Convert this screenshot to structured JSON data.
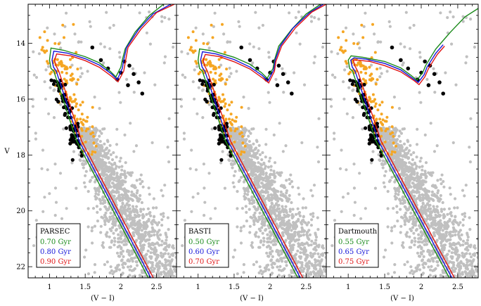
{
  "figure": {
    "type": "color-magnitude diagram",
    "ylabel": "V",
    "xlabel": "(V − I)"
  },
  "colors": {
    "field_stars": "#c0c0c0",
    "orange_stars": "#f5a623",
    "black_stars": "#000000",
    "green": "#1a8a1a",
    "blue": "#1515d8",
    "red": "#e01414"
  },
  "chart_data": [
    {
      "type": "scatter",
      "panel": "PARSEC",
      "x_range": [
        0.7,
        2.78
      ],
      "y_range": [
        22.4,
        12.6
      ],
      "y_inverted": true,
      "x_ticks": [
        1,
        1.5,
        2,
        2.5
      ],
      "y_ticks": [
        14,
        16,
        18,
        20,
        22
      ],
      "legend": {
        "title": "PARSEC",
        "position": "bottom-left",
        "entries": [
          {
            "label": "0.70 Gyr",
            "color": "#1a8a1a"
          },
          {
            "label": "0.80 Gyr",
            "color": "#1515d8"
          },
          {
            "label": "0.90 Gyr",
            "color": "#e01414"
          }
        ]
      },
      "series": [
        {
          "name": "0.70 Gyr",
          "type": "line",
          "color": "#1a8a1a",
          "points": [
            [
              1.02,
              14.17
            ],
            [
              1.2,
              14.25
            ],
            [
              1.5,
              14.48
            ],
            [
              1.7,
              14.7
            ],
            [
              1.85,
              15.0
            ],
            [
              1.93,
              15.2
            ],
            [
              2.0,
              14.85
            ],
            [
              2.02,
              14.6
            ],
            [
              2.06,
              14.2
            ],
            [
              2.2,
              13.6
            ],
            [
              2.4,
              13.0
            ],
            [
              2.6,
              12.6
            ]
          ]
        },
        {
          "name": "0.80 Gyr",
          "type": "line",
          "color": "#1515d8",
          "points": [
            [
              1.06,
              14.28
            ],
            [
              1.25,
              14.35
            ],
            [
              1.5,
              14.55
            ],
            [
              1.7,
              14.78
            ],
            [
              1.87,
              15.1
            ],
            [
              1.95,
              15.3
            ],
            [
              2.02,
              14.9
            ],
            [
              2.04,
              14.6
            ],
            [
              2.08,
              14.15
            ],
            [
              2.25,
              13.5
            ],
            [
              2.45,
              12.95
            ],
            [
              2.7,
              12.6
            ]
          ]
        },
        {
          "name": "0.90 Gyr",
          "type": "line",
          "color": "#e01414",
          "points": [
            [
              1.1,
              14.38
            ],
            [
              1.3,
              14.45
            ],
            [
              1.5,
              14.62
            ],
            [
              1.7,
              14.86
            ],
            [
              1.88,
              15.2
            ],
            [
              1.96,
              15.38
            ],
            [
              2.04,
              15.0
            ],
            [
              2.06,
              14.7
            ],
            [
              2.1,
              14.15
            ],
            [
              2.28,
              13.5
            ],
            [
              2.5,
              12.9
            ],
            [
              2.75,
              12.6
            ]
          ]
        }
      ]
    },
    {
      "type": "scatter",
      "panel": "BASTI",
      "x_range": [
        0.7,
        2.78
      ],
      "y_range": [
        22.4,
        12.6
      ],
      "y_inverted": true,
      "x_ticks": [
        1,
        1.5,
        2,
        2.5
      ],
      "legend": {
        "title": "BASTI",
        "position": "bottom-left",
        "entries": [
          {
            "label": "0.50 Gyr",
            "color": "#1a8a1a"
          },
          {
            "label": "0.60 Gyr",
            "color": "#1515d8"
          },
          {
            "label": "0.70 Gyr",
            "color": "#e01414"
          }
        ]
      },
      "series": [
        {
          "name": "0.50 Gyr",
          "type": "line",
          "color": "#1a8a1a",
          "points": [
            [
              1.02,
              14.2
            ],
            [
              1.2,
              14.27
            ],
            [
              1.5,
              14.5
            ],
            [
              1.72,
              14.75
            ],
            [
              1.88,
              15.05
            ],
            [
              1.96,
              15.25
            ],
            [
              2.04,
              14.9
            ],
            [
              2.06,
              14.6
            ],
            [
              2.12,
              14.1
            ],
            [
              2.3,
              13.5
            ],
            [
              2.5,
              12.95
            ],
            [
              2.7,
              12.6
            ]
          ]
        },
        {
          "name": "0.60 Gyr",
          "type": "line",
          "color": "#1515d8",
          "points": [
            [
              1.06,
              14.3
            ],
            [
              1.25,
              14.38
            ],
            [
              1.5,
              14.58
            ],
            [
              1.72,
              14.85
            ],
            [
              1.89,
              15.15
            ],
            [
              1.97,
              15.35
            ],
            [
              2.05,
              14.95
            ],
            [
              2.07,
              14.6
            ],
            [
              2.14,
              14.1
            ],
            [
              2.32,
              13.45
            ],
            [
              2.55,
              12.9
            ],
            [
              2.74,
              12.6
            ]
          ]
        },
        {
          "name": "0.70 Gyr",
          "type": "line",
          "color": "#e01414",
          "points": [
            [
              1.1,
              14.4
            ],
            [
              1.3,
              14.48
            ],
            [
              1.5,
              14.66
            ],
            [
              1.72,
              14.92
            ],
            [
              1.9,
              15.25
            ],
            [
              1.98,
              15.42
            ],
            [
              2.06,
              15.0
            ],
            [
              2.08,
              14.65
            ],
            [
              2.16,
              14.1
            ],
            [
              2.35,
              13.45
            ],
            [
              2.58,
              12.88
            ],
            [
              2.78,
              12.6
            ]
          ]
        }
      ]
    },
    {
      "type": "scatter",
      "panel": "Dartmouth",
      "x_range": [
        0.7,
        2.78
      ],
      "y_range": [
        22.4,
        12.6
      ],
      "y_inverted": true,
      "x_ticks": [
        1,
        1.5,
        2,
        2.5
      ],
      "legend": {
        "title": "Dartmouth",
        "position": "bottom-left",
        "entries": [
          {
            "label": "0.55 Gyr",
            "color": "#1a8a1a"
          },
          {
            "label": "0.65 Gyr",
            "color": "#1515d8"
          },
          {
            "label": "0.75 Gyr",
            "color": "#e01414"
          }
        ]
      },
      "series": [
        {
          "name": "0.55 Gyr",
          "type": "line",
          "color": "#1a8a1a",
          "points": [
            [
              1.04,
              14.45
            ],
            [
              1.2,
              14.5
            ],
            [
              1.5,
              14.65
            ],
            [
              1.72,
              14.88
            ],
            [
              1.86,
              15.15
            ],
            [
              1.94,
              15.32
            ],
            [
              2.02,
              15.05
            ],
            [
              2.06,
              14.8
            ],
            [
              2.2,
              14.2
            ],
            [
              2.4,
              13.6
            ],
            [
              2.6,
              13.05
            ],
            [
              2.78,
              12.75
            ]
          ]
        },
        {
          "name": "0.65 Gyr",
          "type": "line",
          "color": "#1515d8",
          "points": [
            [
              1.08,
              14.52
            ],
            [
              1.25,
              14.57
            ],
            [
              1.5,
              14.72
            ],
            [
              1.72,
              14.95
            ],
            [
              1.88,
              15.25
            ],
            [
              1.96,
              15.4
            ],
            [
              2.04,
              15.12
            ],
            [
              2.08,
              14.85
            ],
            [
              2.2,
              14.35
            ],
            [
              2.3,
              14.05
            ]
          ]
        },
        {
          "name": "0.75 Gyr",
          "type": "line",
          "color": "#e01414",
          "points": [
            [
              1.12,
              14.6
            ],
            [
              1.3,
              14.65
            ],
            [
              1.5,
              14.8
            ],
            [
              1.72,
              15.02
            ],
            [
              1.9,
              15.33
            ],
            [
              1.97,
              15.48
            ],
            [
              2.05,
              15.2
            ],
            [
              2.1,
              14.9
            ],
            [
              2.22,
              14.4
            ],
            [
              2.32,
              14.1
            ]
          ]
        }
      ]
    }
  ]
}
